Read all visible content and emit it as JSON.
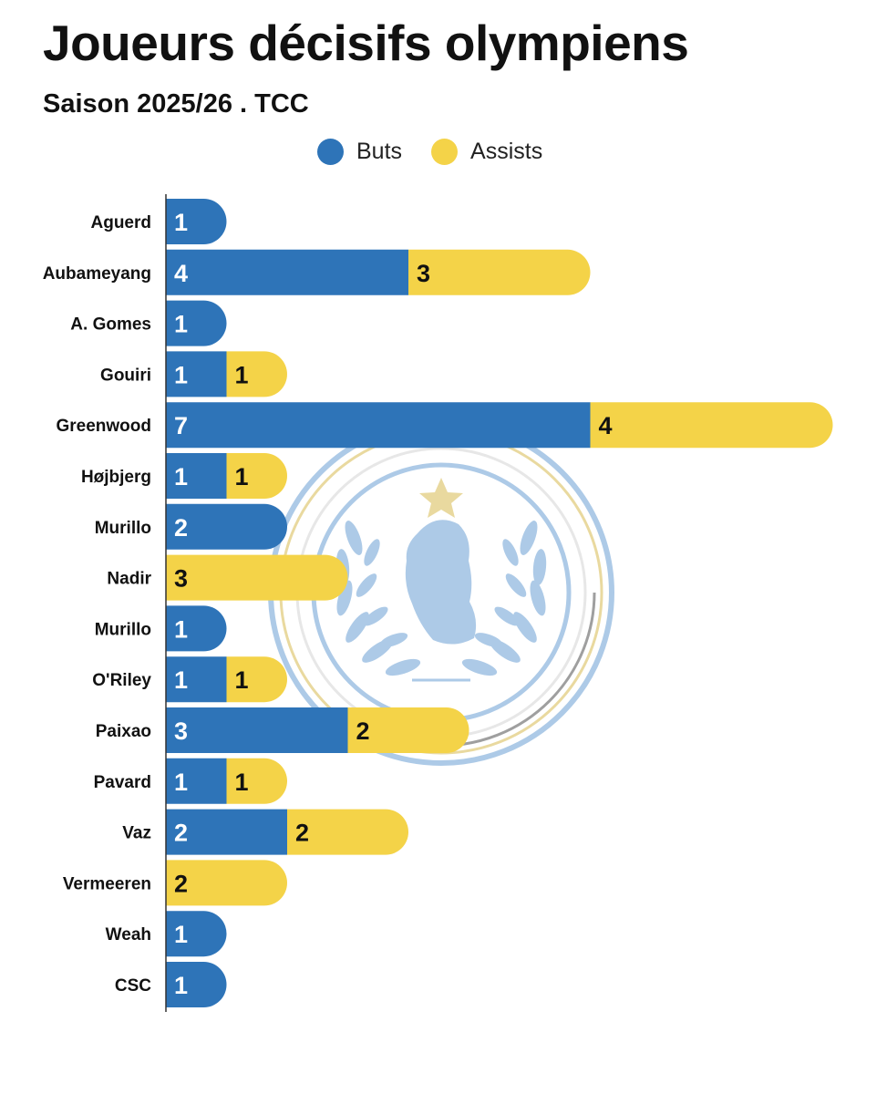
{
  "header": {
    "title": "Joueurs décisifs olympiens",
    "subtitle": "Saison 2025/26 . TCC"
  },
  "legend": {
    "goals_label": "Buts",
    "assists_label": "Assists"
  },
  "colors": {
    "goals": "#2e74b8",
    "assists": "#f4d348",
    "axis": "#333333",
    "text": "#111111",
    "goals_text": "#ffffff",
    "assists_text": "#111111",
    "watermark_blue": "#a9c8e6",
    "watermark_gold": "#e8d79a",
    "watermark_gray": "#9a9a9a"
  },
  "chart_data": {
    "type": "bar",
    "orientation": "horizontal",
    "stacked": true,
    "title": "Joueurs décisifs olympiens",
    "subtitle": "Saison 2025/26 . TCC",
    "categories": [
      "Aguerd",
      "Aubameyang",
      "A. Gomes",
      "Gouiri",
      "Greenwood",
      "Højbjerg",
      "Murillo",
      "Nadir",
      "Murillo",
      "O'Riley",
      "Paixao",
      "Pavard",
      "Vaz",
      "Vermeeren",
      "Weah",
      "CSC"
    ],
    "series": [
      {
        "name": "Buts",
        "values": [
          1,
          4,
          1,
          1,
          7,
          1,
          2,
          0,
          1,
          1,
          3,
          1,
          2,
          0,
          1,
          1
        ]
      },
      {
        "name": "Assists",
        "values": [
          0,
          3,
          0,
          1,
          4,
          1,
          0,
          3,
          0,
          1,
          2,
          1,
          2,
          2,
          0,
          0
        ]
      }
    ],
    "xlim": [
      0,
      11
    ],
    "legend_position": "top-center",
    "grid": false
  }
}
